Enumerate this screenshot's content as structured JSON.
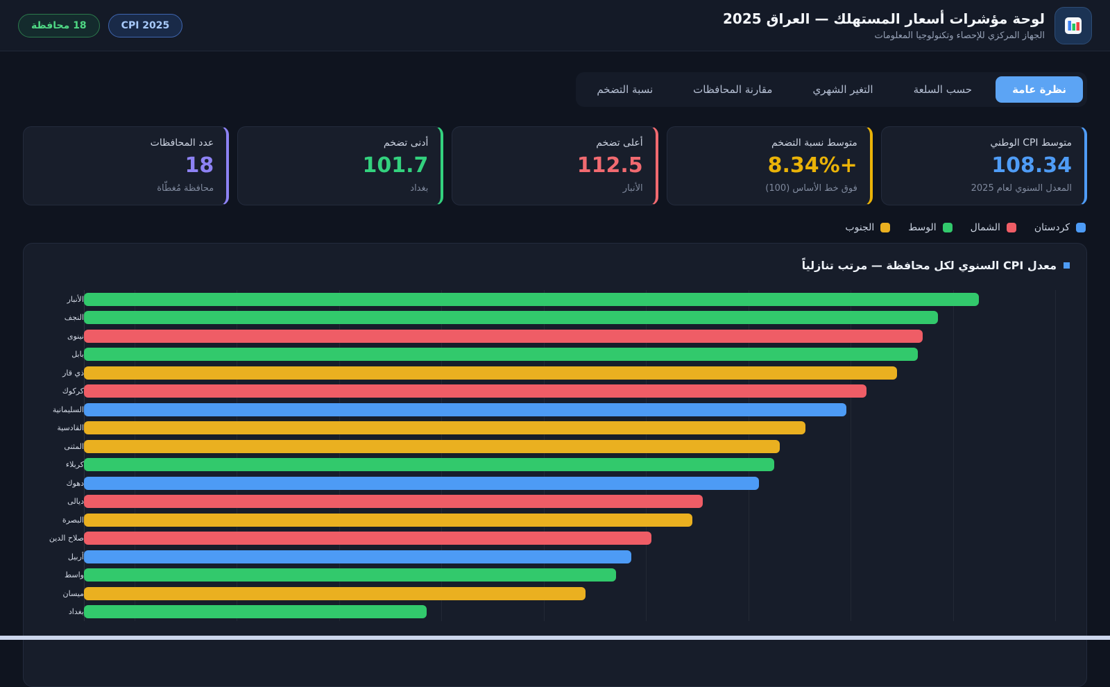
{
  "header": {
    "title": "لوحة مؤشرات أسعار المستهلك — العراق 2025",
    "subtitle": "الجهاز المركزي للإحصاء وتكنولوجيا المعلومات",
    "badges": [
      {
        "label": "CPI 2025",
        "style": "blue"
      },
      {
        "label": "18 محافظة",
        "style": "green"
      }
    ]
  },
  "icons": {
    "logo": "bar-chart-icon",
    "chart_title_marker": "blue-square-bullet"
  },
  "tabs": [
    {
      "label": "نظرة عامة",
      "active": true
    },
    {
      "label": "حسب السلعة",
      "active": false
    },
    {
      "label": "التغير الشهري",
      "active": false
    },
    {
      "label": "مقارنة المحافظات",
      "active": false
    },
    {
      "label": "نسبة التضخم",
      "active": false
    }
  ],
  "stats": [
    {
      "label": "متوسط CPI الوطني",
      "value": "108.34",
      "sub": "المعدل السنوي لعام 2025",
      "color": "#4f9cf6"
    },
    {
      "label": "متوسط نسبة التضخم",
      "value": "+8.34%",
      "sub": "فوق خط الأساس (100)",
      "color": "#eab308"
    },
    {
      "label": "أعلى تضخم",
      "value": "112.5",
      "sub": "الأنبار",
      "color": "#f16a70"
    },
    {
      "label": "أدنى تضخم",
      "value": "101.7",
      "sub": "بغداد",
      "color": "#33d17e"
    },
    {
      "label": "عدد المحافظات",
      "value": "18",
      "sub": "محافظة مُغطّاة",
      "color": "#8d82f4"
    }
  ],
  "legend": [
    {
      "label": "كردستان",
      "region": "kurdistan",
      "color": "#4d9bf5"
    },
    {
      "label": "الشمال",
      "region": "north",
      "color": "#ef5d66"
    },
    {
      "label": "الوسط",
      "region": "center",
      "color": "#32c96c"
    },
    {
      "label": "الجنوب",
      "region": "south",
      "color": "#eab020"
    }
  ],
  "region_colors": {
    "kurdistan": "#4d9bf5",
    "north": "#ef5d66",
    "center": "#32c96c",
    "south": "#eab020"
  },
  "chart_data": {
    "type": "bar",
    "orientation": "horizontal",
    "title": "معدل CPI السنوي لكل محافظة — مرتب تنازلياً",
    "xlabel": "",
    "ylabel": "",
    "xlim": [
      95,
      114
    ],
    "gridline_step": 2,
    "grid": true,
    "legend_position": "top-right",
    "sort": "descending",
    "bars": [
      {
        "name": "الأنبار",
        "value": 112.5,
        "region": "center"
      },
      {
        "name": "النجف",
        "value": 111.7,
        "region": "center"
      },
      {
        "name": "نينوى",
        "value": 111.4,
        "region": "north"
      },
      {
        "name": "بابل",
        "value": 111.3,
        "region": "center"
      },
      {
        "name": "ذي قار",
        "value": 110.9,
        "region": "south"
      },
      {
        "name": "كركوك",
        "value": 110.3,
        "region": "north"
      },
      {
        "name": "السليمانية",
        "value": 109.9,
        "region": "kurdistan"
      },
      {
        "name": "القادسية",
        "value": 109.1,
        "region": "south"
      },
      {
        "name": "المثنى",
        "value": 108.6,
        "region": "south"
      },
      {
        "name": "كربلاء",
        "value": 108.5,
        "region": "center"
      },
      {
        "name": "دهوك",
        "value": 108.2,
        "region": "kurdistan"
      },
      {
        "name": "ديالى",
        "value": 107.1,
        "region": "north"
      },
      {
        "name": "البصرة",
        "value": 106.9,
        "region": "south"
      },
      {
        "name": "صلاح الدين",
        "value": 106.1,
        "region": "north"
      },
      {
        "name": "أربيل",
        "value": 105.7,
        "region": "kurdistan"
      },
      {
        "name": "واسط",
        "value": 105.4,
        "region": "center"
      },
      {
        "name": "ميسان",
        "value": 104.8,
        "region": "south"
      },
      {
        "name": "بغداد",
        "value": 101.7,
        "region": "center"
      }
    ]
  }
}
